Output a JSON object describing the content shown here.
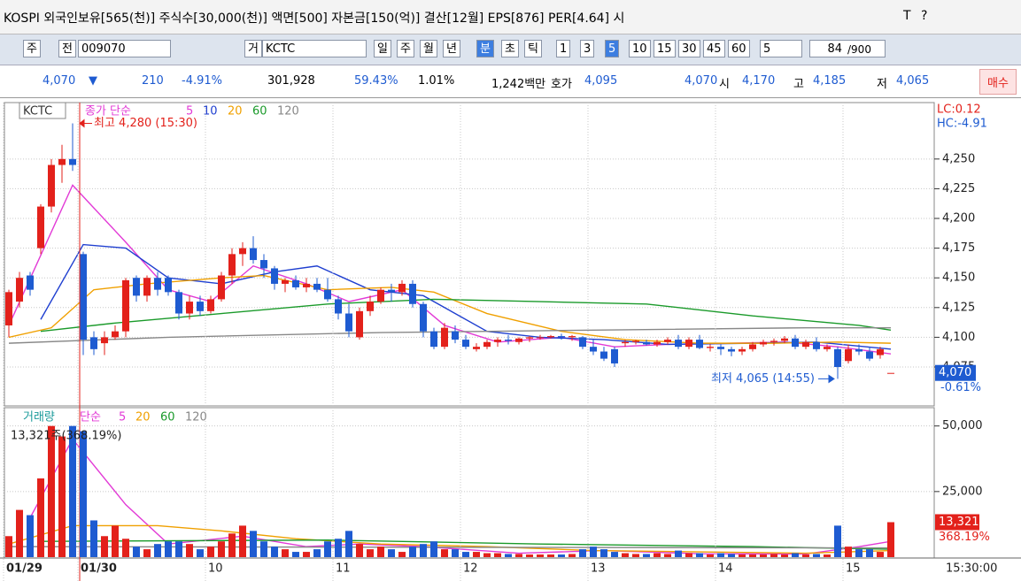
{
  "header": {
    "title": "KOSPI 외국인보유[565(천)] 주식수[30,000(천)] 액면[500] 자본금[150(억)] 결산[12월] EPS[876] PER[4.64] 시",
    "icons": [
      "T",
      "?"
    ]
  },
  "toolbar": {
    "market": "주",
    "prefix": "전",
    "code": "009070",
    "name_prefix": "거",
    "name": "KCTC",
    "periods": [
      "일",
      "주",
      "월",
      "년",
      "분",
      "초",
      "틱"
    ],
    "intervals": [
      "1",
      "3",
      "5",
      "10",
      "15",
      "30",
      "45",
      "60"
    ],
    "count": "5",
    "shown": "84",
    "total": "/900"
  },
  "quote": {
    "price": "4,070",
    "arrow": "▼",
    "change": "210",
    "change_pct": "-4.91%",
    "volume": "301,928",
    "vol_ratio": "59.43%",
    "turnover": "1.01%",
    "amount": "1,242백만",
    "ask_label": "호가",
    "ask": "4,095",
    "bid": "4,070",
    "open_label": "시",
    "open": "4,170",
    "high_label": "고",
    "high": "4,185",
    "low_label": "저",
    "low": "4,065",
    "buy": "매수"
  },
  "chart_data": [
    {
      "type": "candlestick",
      "name": "KCTC",
      "legend_title": "종가 단순",
      "up_color": "#e3211b",
      "down_color": "#1e5bd1",
      "open": [
        4110,
        4130,
        4152,
        4175,
        4210,
        4245,
        4250,
        4170,
        4100,
        4095,
        4100,
        4105,
        4150,
        4135,
        4150,
        4150,
        4138,
        4120,
        4130,
        4122,
        4132,
        4152,
        4170,
        4175,
        4165,
        4158,
        4145,
        4148,
        4142,
        4145,
        4140,
        4132,
        4120,
        4100,
        4122,
        4130,
        4140,
        4138,
        4145,
        4128,
        4105,
        4092,
        4105,
        4098,
        4090,
        4092,
        4096,
        4098,
        4096,
        4099,
        4100,
        4100,
        4101,
        4100,
        4100,
        4092,
        4088,
        4090,
        4095,
        4096,
        4096,
        4094,
        4096,
        4098,
        4092,
        4098,
        4091,
        4092,
        4090,
        4088,
        4090,
        4094,
        4096,
        4097,
        4099,
        4092,
        4096,
        4090,
        4090,
        4080,
        4090,
        4088,
        4085,
        4070
      ],
      "high": [
        4140,
        4155,
        4155,
        4212,
        4250,
        4262,
        4280,
        4172,
        4105,
        4105,
        4110,
        4150,
        4152,
        4152,
        4155,
        4152,
        4140,
        4135,
        4135,
        4135,
        4155,
        4175,
        4180,
        4185,
        4170,
        4160,
        4150,
        4152,
        4150,
        4150,
        4150,
        4135,
        4128,
        4125,
        4135,
        4142,
        4145,
        4148,
        4148,
        4130,
        4108,
        4112,
        4110,
        4102,
        4095,
        4098,
        4100,
        4102,
        4100,
        4101,
        4102,
        4102,
        4103,
        4102,
        4101,
        4098,
        4092,
        4092,
        4098,
        4098,
        4098,
        4098,
        4100,
        4102,
        4100,
        4102,
        4094,
        4094,
        4092,
        4092,
        4096,
        4098,
        4099,
        4101,
        4102,
        4098,
        4100,
        4094,
        4092,
        4094,
        4094,
        4092,
        4092,
        4070
      ],
      "low": [
        4100,
        4125,
        4135,
        4170,
        4205,
        4230,
        4240,
        4085,
        4085,
        4085,
        4098,
        4100,
        4130,
        4130,
        4135,
        4135,
        4115,
        4115,
        4118,
        4120,
        4130,
        4145,
        4160,
        4162,
        4150,
        4140,
        4138,
        4140,
        4138,
        4138,
        4130,
        4115,
        4100,
        4098,
        4118,
        4128,
        4130,
        4135,
        4125,
        4100,
        4090,
        4090,
        4095,
        4090,
        4088,
        4090,
        4092,
        4094,
        4094,
        4096,
        4098,
        4099,
        4098,
        4097,
        4090,
        4085,
        4080,
        4075,
        4092,
        4094,
        4093,
        4092,
        4094,
        4090,
        4090,
        4090,
        4088,
        4085,
        4084,
        4085,
        4088,
        4092,
        4093,
        4095,
        4090,
        4090,
        4088,
        4088,
        4065,
        4078,
        4085,
        4080,
        4082,
        4070
      ],
      "close": [
        4138,
        4150,
        4140,
        4210,
        4245,
        4250,
        4245,
        4098,
        4090,
        4100,
        4105,
        4148,
        4135,
        4150,
        4140,
        4138,
        4120,
        4130,
        4122,
        4132,
        4152,
        4170,
        4175,
        4165,
        4158,
        4145,
        4148,
        4142,
        4145,
        4140,
        4132,
        4120,
        4105,
        4122,
        4130,
        4140,
        4138,
        4145,
        4128,
        4105,
        4092,
        4108,
        4098,
        4092,
        4092,
        4096,
        4098,
        4097,
        4099,
        4100,
        4100,
        4101,
        4100,
        4101,
        4092,
        4088,
        4082,
        4078,
        4096,
        4097,
        4094,
        4096,
        4098,
        4092,
        4098,
        4091,
        4092,
        4090,
        4088,
        4090,
        4094,
        4096,
        4097,
        4099,
        4092,
        4096,
        4090,
        4092,
        4075,
        4090,
        4088,
        4082,
        4090,
        4070
      ],
      "series": [
        {
          "name": "5",
          "color": "#e23ad6",
          "x": [
            0,
            6,
            11,
            15,
            19,
            23,
            28,
            32,
            37,
            41,
            46,
            52,
            57,
            62,
            68,
            73,
            78,
            83
          ],
          "values": [
            4110,
            4228,
            4180,
            4140,
            4130,
            4160,
            4145,
            4130,
            4140,
            4110,
            4096,
            4100,
            4092,
            4094,
            4095,
            4096,
            4092,
            4086
          ]
        },
        {
          "name": "10",
          "color": "#1f3fd0",
          "x": [
            3,
            7,
            11,
            15,
            20,
            25,
            29,
            34,
            39,
            45,
            50,
            56,
            62,
            70,
            76,
            83
          ],
          "values": [
            4115,
            4178,
            4175,
            4150,
            4145,
            4155,
            4160,
            4140,
            4135,
            4105,
            4100,
            4098,
            4094,
            4095,
            4096,
            4090
          ]
        },
        {
          "name": "20",
          "color": "#f0a000",
          "x": [
            0,
            4,
            8,
            13,
            20,
            24,
            30,
            36,
            40,
            45,
            52,
            58,
            65,
            72,
            78,
            83
          ],
          "values": [
            4100,
            4108,
            4140,
            4145,
            4150,
            4152,
            4140,
            4142,
            4138,
            4120,
            4105,
            4098,
            4095,
            4095,
            4096,
            4095
          ]
        },
        {
          "name": "60",
          "color": "#1a9a2a",
          "x": [
            3,
            10,
            20,
            30,
            40,
            50,
            60,
            70,
            80,
            83
          ],
          "values": [
            4105,
            4112,
            4120,
            4128,
            4132,
            4130,
            4128,
            4118,
            4110,
            4106
          ]
        },
        {
          "name": "120",
          "color": "#888888",
          "x": [
            0,
            15,
            35,
            55,
            75,
            83
          ],
          "values": [
            4095,
            4100,
            4104,
            4106,
            4108,
            4108
          ]
        }
      ],
      "ylim": [
        4043,
        4296
      ],
      "yticks": [
        {
          "value": 4075,
          "label": "4,075"
        },
        {
          "value": 4100,
          "label": "4,100"
        },
        {
          "value": 4125,
          "label": "4,125"
        },
        {
          "value": 4150,
          "label": "4,150"
        },
        {
          "value": 4175,
          "label": "4,175"
        },
        {
          "value": 4200,
          "label": "4,200"
        },
        {
          "value": 4225,
          "label": "4,225"
        },
        {
          "value": 4250,
          "label": "4,250"
        }
      ],
      "grid": true,
      "annotations": [
        "최고 4,280 (15:30)",
        "최저 4,065 (14:55)"
      ],
      "corner_labels": [
        "LC:0.12",
        "HC:-4.91"
      ],
      "last_label": "4,070",
      "last_change": "-0.61%"
    },
    {
      "type": "bar",
      "title": "거래량",
      "legend_title": "단순",
      "categories": [
        "01/29",
        null,
        null,
        null,
        null,
        null,
        null,
        "01/30",
        null,
        null,
        null,
        null,
        null,
        null,
        null,
        null,
        null,
        null,
        null,
        "10",
        null,
        null,
        null,
        null,
        null,
        null,
        null,
        null,
        null,
        null,
        null,
        "11",
        null,
        null,
        null,
        null,
        null,
        null,
        null,
        null,
        null,
        null,
        null,
        "12",
        null,
        null,
        null,
        null,
        null,
        null,
        null,
        null,
        null,
        null,
        null,
        "13",
        null,
        null,
        null,
        null,
        null,
        null,
        null,
        null,
        null,
        null,
        null,
        "14",
        null,
        null,
        null,
        null,
        null,
        null,
        null,
        null,
        null,
        null,
        null,
        "15",
        null,
        null,
        null,
        null
      ],
      "values": [
        8000,
        18000,
        16000,
        30000,
        50000,
        46000,
        50000,
        48000,
        14000,
        8000,
        12000,
        7000,
        4000,
        3000,
        5000,
        6000,
        6000,
        5000,
        3000,
        4000,
        6000,
        9000,
        12000,
        10000,
        6000,
        4000,
        3000,
        2000,
        2000,
        3000,
        6000,
        7000,
        10000,
        5000,
        3000,
        4000,
        3000,
        2000,
        4000,
        5000,
        6000,
        3000,
        3000,
        2000,
        2000,
        1500,
        1500,
        1200,
        1200,
        1000,
        1000,
        1000,
        1000,
        1200,
        3000,
        4000,
        3000,
        2000,
        1500,
        1200,
        1200,
        1500,
        1200,
        2500,
        1500,
        1500,
        1000,
        1500,
        1200,
        1000,
        1000,
        1000,
        1200,
        1000,
        1500,
        1000,
        1200,
        1000,
        12000,
        4000,
        3000,
        3000,
        2000,
        13321
      ],
      "series": [
        {
          "name": "5",
          "color": "#e23ad6",
          "x": [
            2,
            6,
            11,
            15,
            22,
            28,
            33,
            39,
            48,
            56,
            65,
            75,
            80,
            83
          ],
          "values": [
            15000,
            45000,
            20000,
            5000,
            8000,
            4000,
            5000,
            4000,
            1500,
            2500,
            1300,
            1200,
            4000,
            6000
          ]
        },
        {
          "name": "20",
          "color": "#f0a000",
          "x": [
            0,
            6,
            14,
            20,
            27,
            35,
            45,
            55,
            65,
            75,
            83
          ],
          "values": [
            5000,
            12000,
            12000,
            10000,
            7000,
            5000,
            4000,
            2500,
            2000,
            1500,
            2500
          ]
        },
        {
          "name": "60",
          "color": "#1a9a2a",
          "x": [
            3,
            30,
            50,
            70,
            83
          ],
          "values": [
            6000,
            6500,
            5000,
            4000,
            3000
          ]
        },
        {
          "name": "120",
          "color": "#888888",
          "x": [
            0,
            83
          ],
          "values": [
            4000,
            3500
          ]
        }
      ],
      "ylim": [
        0,
        56300
      ],
      "yticks": [
        {
          "value": 25000,
          "label": "25,000"
        },
        {
          "value": 50000,
          "label": "50,000"
        }
      ],
      "grid": true,
      "info": "13,321주(368.19%)",
      "last_label": "13,321",
      "last_change": "368.19%",
      "cursor_label": "15:30:00"
    }
  ]
}
